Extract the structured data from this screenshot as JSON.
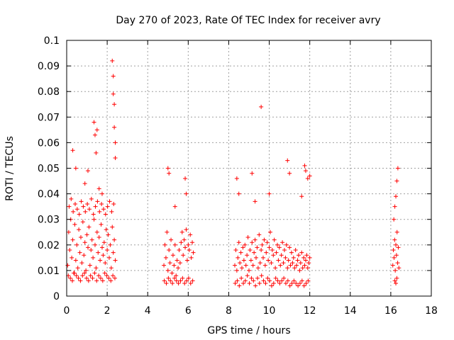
{
  "chart_data": {
    "type": "scatter",
    "title": "Day 270 of 2023, Rate Of TEC Index for receiver avry",
    "xlabel": "GPS time / hours",
    "ylabel": "ROTI / TECUs",
    "xlim": [
      0,
      18
    ],
    "ylim": [
      0,
      0.1
    ],
    "xticks": [
      "0",
      "2",
      "4",
      "6",
      "8",
      "10",
      "12",
      "14",
      "16",
      "18"
    ],
    "yticks": [
      "0",
      "0.01",
      "0.02",
      "0.03",
      "0.04",
      "0.05",
      "0.06",
      "0.07",
      "0.08",
      "0.09",
      "0.1"
    ],
    "grid": true,
    "marker": "+",
    "color": "#ff0000",
    "series": [
      {
        "x": [
          0.05,
          0.1,
          0.15,
          0.2,
          0.25,
          0.3,
          0.35,
          0.4,
          0.45,
          0.5,
          0.55,
          0.6,
          0.65,
          0.7,
          0.75,
          0.8,
          0.85,
          0.9,
          0.95,
          1.0,
          1.05,
          1.1,
          1.15,
          1.2,
          1.25,
          1.3,
          1.35,
          1.4,
          1.45,
          1.5,
          1.55,
          1.6,
          1.65,
          1.7,
          1.75,
          1.8,
          1.85,
          1.9,
          1.95,
          2.0,
          2.05,
          2.1,
          2.15,
          2.2,
          2.25,
          2.3,
          2.35,
          2.4,
          0.08,
          0.18,
          0.28,
          0.38,
          0.48,
          0.58,
          0.68,
          0.78,
          0.88,
          0.98,
          1.08,
          1.18,
          1.28,
          1.38,
          1.48,
          1.58,
          1.68,
          1.78,
          1.88,
          1.98,
          2.08,
          2.18,
          2.28,
          2.38,
          0.12,
          0.22,
          0.32,
          0.42,
          0.52,
          0.62,
          0.72,
          0.82,
          0.92,
          1.02,
          1.12,
          1.22,
          1.32,
          1.42,
          1.52,
          1.62,
          1.72,
          1.82,
          1.92,
          2.02,
          2.12,
          2.22,
          2.32,
          0.3,
          0.45,
          0.9,
          1.05,
          1.35,
          1.4,
          1.45,
          1.5,
          1.6,
          1.75,
          2.25,
          2.3,
          2.3,
          2.35,
          2.35,
          2.4,
          2.4,
          4.8,
          4.85,
          4.9,
          4.95,
          5.0,
          5.05,
          5.1,
          5.15,
          5.2,
          5.25,
          5.3,
          5.35,
          5.4,
          5.45,
          5.5,
          5.55,
          5.6,
          5.65,
          5.7,
          5.75,
          5.8,
          5.85,
          5.9,
          5.95,
          6.0,
          6.05,
          6.1,
          6.15,
          6.2,
          6.25,
          4.82,
          4.92,
          5.02,
          5.12,
          5.22,
          5.32,
          5.42,
          5.52,
          5.62,
          5.72,
          5.82,
          5.92,
          6.02,
          6.12,
          6.22,
          5.0,
          5.05,
          5.35,
          5.85,
          5.9,
          8.3,
          8.35,
          8.4,
          8.45,
          8.5,
          8.55,
          8.6,
          8.65,
          8.7,
          8.75,
          8.8,
          8.85,
          8.9,
          8.95,
          9.0,
          9.05,
          9.1,
          9.15,
          9.2,
          9.25,
          9.3,
          9.35,
          9.4,
          9.45,
          9.5,
          9.55,
          9.6,
          9.65,
          9.7,
          9.75,
          9.8,
          9.85,
          9.9,
          9.95,
          10.0,
          10.05,
          10.1,
          10.15,
          10.2,
          10.25,
          10.3,
          10.35,
          10.4,
          10.45,
          10.5,
          10.55,
          10.6,
          10.65,
          10.7,
          10.75,
          10.8,
          10.85,
          10.9,
          10.95,
          11.0,
          11.05,
          11.1,
          11.15,
          11.2,
          11.25,
          11.3,
          11.35,
          11.4,
          11.45,
          11.5,
          11.55,
          11.6,
          11.65,
          11.7,
          11.75,
          11.8,
          11.85,
          11.9,
          11.95,
          12.0,
          8.32,
          8.42,
          8.52,
          8.62,
          8.72,
          8.82,
          8.92,
          9.02,
          9.12,
          9.22,
          9.32,
          9.42,
          9.52,
          9.62,
          9.72,
          9.82,
          9.92,
          10.02,
          10.12,
          10.22,
          10.32,
          10.42,
          10.52,
          10.62,
          10.72,
          10.82,
          10.92,
          11.02,
          11.12,
          11.22,
          11.32,
          11.42,
          11.52,
          11.62,
          11.72,
          11.82,
          11.92,
          8.4,
          8.5,
          9.15,
          9.3,
          9.6,
          10.0,
          10.9,
          11.0,
          11.6,
          11.75,
          11.8,
          11.9,
          12.0,
          16.1,
          16.13,
          16.16,
          16.19,
          16.22,
          16.25,
          16.28,
          16.31,
          16.34,
          16.37,
          16.4,
          16.15,
          16.2,
          16.25,
          16.3,
          16.35,
          16.2,
          16.25,
          16.3
        ],
        "y": [
          0.012,
          0.025,
          0.018,
          0.03,
          0.015,
          0.022,
          0.009,
          0.028,
          0.014,
          0.02,
          0.011,
          0.026,
          0.017,
          0.023,
          0.013,
          0.029,
          0.016,
          0.021,
          0.01,
          0.024,
          0.019,
          0.027,
          0.012,
          0.018,
          0.022,
          0.015,
          0.03,
          0.02,
          0.011,
          0.025,
          0.017,
          0.023,
          0.014,
          0.028,
          0.019,
          0.016,
          0.021,
          0.013,
          0.026,
          0.018,
          0.024,
          0.015,
          0.02,
          0.011,
          0.027,
          0.017,
          0.022,
          0.014,
          0.008,
          0.007,
          0.006,
          0.009,
          0.008,
          0.007,
          0.006,
          0.008,
          0.009,
          0.007,
          0.006,
          0.008,
          0.007,
          0.009,
          0.006,
          0.008,
          0.007,
          0.006,
          0.009,
          0.008,
          0.007,
          0.006,
          0.008,
          0.007,
          0.035,
          0.038,
          0.033,
          0.036,
          0.034,
          0.032,
          0.037,
          0.035,
          0.033,
          0.036,
          0.034,
          0.038,
          0.032,
          0.035,
          0.037,
          0.033,
          0.036,
          0.034,
          0.032,
          0.035,
          0.037,
          0.033,
          0.036,
          0.057,
          0.05,
          0.044,
          0.049,
          0.068,
          0.063,
          0.056,
          0.065,
          0.042,
          0.04,
          0.092,
          0.086,
          0.079,
          0.075,
          0.066,
          0.06,
          0.054,
          0.012,
          0.02,
          0.015,
          0.025,
          0.01,
          0.018,
          0.013,
          0.022,
          0.009,
          0.016,
          0.012,
          0.02,
          0.008,
          0.014,
          0.011,
          0.018,
          0.013,
          0.021,
          0.025,
          0.016,
          0.022,
          0.019,
          0.026,
          0.014,
          0.02,
          0.018,
          0.024,
          0.015,
          0.021,
          0.017,
          0.006,
          0.005,
          0.007,
          0.006,
          0.005,
          0.007,
          0.006,
          0.005,
          0.006,
          0.007,
          0.005,
          0.006,
          0.007,
          0.005,
          0.006,
          0.05,
          0.048,
          0.035,
          0.046,
          0.04,
          0.012,
          0.018,
          0.01,
          0.015,
          0.021,
          0.013,
          0.017,
          0.011,
          0.019,
          0.014,
          0.02,
          0.012,
          0.016,
          0.023,
          0.01,
          0.018,
          0.014,
          0.021,
          0.012,
          0.017,
          0.022,
          0.015,
          0.019,
          0.011,
          0.024,
          0.013,
          0.018,
          0.02,
          0.015,
          0.022,
          0.012,
          0.017,
          0.021,
          0.014,
          0.019,
          0.025,
          0.013,
          0.018,
          0.016,
          0.022,
          0.011,
          0.017,
          0.02,
          0.014,
          0.019,
          0.012,
          0.016,
          0.021,
          0.013,
          0.018,
          0.015,
          0.02,
          0.011,
          0.014,
          0.019,
          0.012,
          0.017,
          0.013,
          0.015,
          0.011,
          0.018,
          0.012,
          0.014,
          0.016,
          0.01,
          0.013,
          0.017,
          0.011,
          0.015,
          0.012,
          0.014,
          0.016,
          0.011,
          0.013,
          0.015,
          0.005,
          0.006,
          0.004,
          0.007,
          0.005,
          0.006,
          0.008,
          0.005,
          0.007,
          0.006,
          0.004,
          0.007,
          0.005,
          0.008,
          0.006,
          0.005,
          0.007,
          0.006,
          0.004,
          0.005,
          0.007,
          0.006,
          0.005,
          0.006,
          0.007,
          0.005,
          0.006,
          0.004,
          0.005,
          0.006,
          0.005,
          0.004,
          0.005,
          0.006,
          0.004,
          0.005,
          0.006,
          0.046,
          0.04,
          0.048,
          0.037,
          0.074,
          0.04,
          0.053,
          0.048,
          0.039,
          0.051,
          0.049,
          0.046,
          0.047,
          0.012,
          0.018,
          0.015,
          0.022,
          0.01,
          0.02,
          0.016,
          0.025,
          0.013,
          0.019,
          0.011,
          0.03,
          0.035,
          0.039,
          0.045,
          0.05,
          0.006,
          0.005,
          0.007
        ]
      }
    ]
  }
}
